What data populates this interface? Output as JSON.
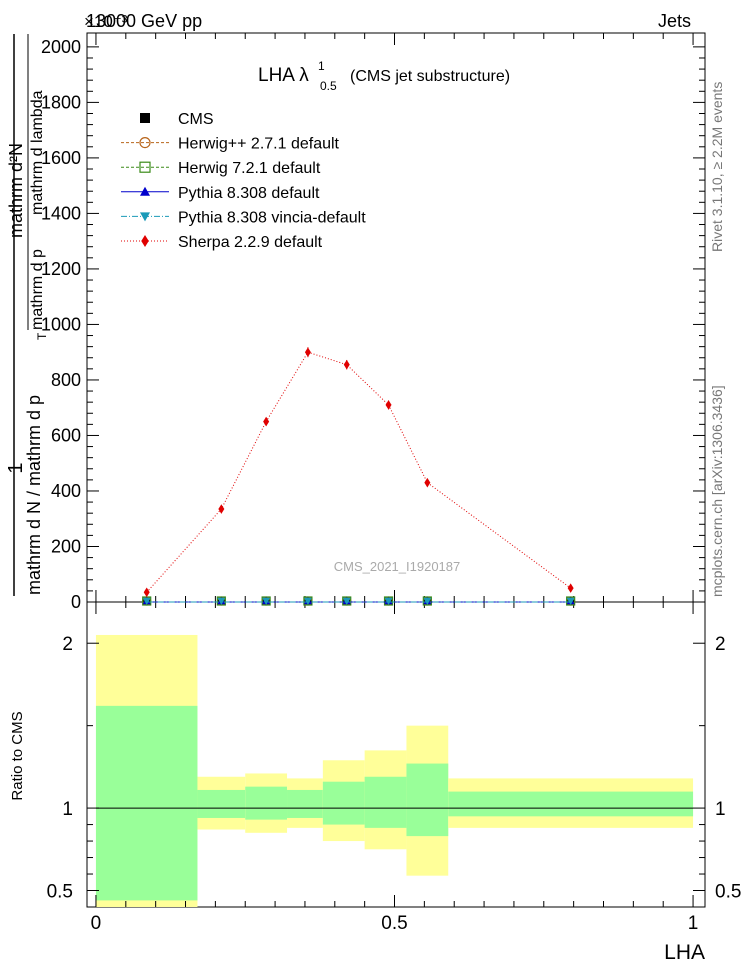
{
  "header": {
    "left": "13000 GeV pp",
    "right": "Jets",
    "multiplier": "×10⁻³"
  },
  "side_texts": {
    "rivet": "Rivet 3.1.10, ≥ 2.2M events",
    "mcplots": "mcplots.cern.ch [arXiv:1306.3436]"
  },
  "chart_data": [
    {
      "type": "line",
      "title_main": "LHA λ",
      "title_sup": "1",
      "title_sub": "0.5",
      "title_rest": "(CMS jet substructure)",
      "watermark": "CMS_2021_I1920187",
      "ylabel_numer": "1",
      "ylabel_denom_a": "mathrm d N / mathrm d p",
      "ylabel_denom_b": "mathrm d p",
      "ylabel_sub": "T",
      "ylabel_frac_numer": "mathrm d²N",
      "ylabel_frac_denom": "mathrm d p",
      "ylabel_frac_denom_b": "mathrm d lambda",
      "ylim": [
        0,
        2050
      ],
      "y_ticks": [
        0,
        200,
        400,
        600,
        800,
        1000,
        1200,
        1400,
        1600,
        1800,
        2000
      ],
      "y_tick_labels": [
        "0",
        "200",
        "400",
        "600",
        "800",
        "1000",
        "1200",
        "1400",
        "1600",
        "1800",
        "2000"
      ],
      "xlim": [
        -0.015,
        1.02
      ],
      "legend_placement": "top-left",
      "series": [
        {
          "name": "CMS",
          "color": "#000000",
          "marker": "square",
          "x": [
            0.085,
            0.21,
            0.285,
            0.355,
            0.42,
            0.49,
            0.555,
            0.795
          ],
          "y": [
            0,
            0,
            0,
            0,
            0,
            0,
            0,
            0
          ]
        },
        {
          "name": "Herwig++ 2.7.1 default",
          "color": "#b8651b",
          "marker": "circle-open",
          "dash": "3,2",
          "x": [
            0.085,
            0.21,
            0.285,
            0.355,
            0.42,
            0.49,
            0.555,
            0.795
          ],
          "y": [
            0,
            0,
            0,
            0,
            0,
            0,
            0,
            0
          ]
        },
        {
          "name": "Herwig 7.2.1 default",
          "color": "#3a8a18",
          "marker": "square-open",
          "dash": "3,2",
          "x": [
            0.085,
            0.21,
            0.285,
            0.355,
            0.42,
            0.49,
            0.555,
            0.795
          ],
          "y": [
            0,
            0,
            0,
            0,
            0,
            0,
            0,
            0
          ]
        },
        {
          "name": "Pythia 8.308 default",
          "color": "#0000cc",
          "marker": "triangle-up",
          "dash": "",
          "x": [
            0.085,
            0.21,
            0.285,
            0.355,
            0.42,
            0.49,
            0.555,
            0.795
          ],
          "y": [
            0,
            0,
            0,
            0,
            0,
            0,
            0,
            0
          ]
        },
        {
          "name": "Pythia 8.308 vincia-default",
          "color": "#1a9ab8",
          "marker": "triangle-down",
          "dash": "6,2,1,2",
          "x": [
            0.085,
            0.21,
            0.285,
            0.355,
            0.42,
            0.49,
            0.555,
            0.795
          ],
          "y": [
            0,
            0,
            0,
            0,
            0,
            0,
            0,
            0
          ]
        },
        {
          "name": "Sherpa 2.2.9 default",
          "color": "#e00000",
          "marker": "diamond",
          "dash": "1,2",
          "x": [
            0.085,
            0.21,
            0.285,
            0.355,
            0.42,
            0.49,
            0.555,
            0.795
          ],
          "y": [
            35,
            335,
            650,
            900,
            855,
            710,
            430,
            50
          ],
          "yerr": [
            8,
            12,
            15,
            18,
            17,
            16,
            12,
            9
          ]
        }
      ]
    },
    {
      "type": "area",
      "ylabel": "Ratio to CMS",
      "xlabel": "LHA",
      "ylim": [
        0.4,
        2.25
      ],
      "y_ticks": [
        0.5,
        1,
        2
      ],
      "y_tick_labels": [
        "0.5",
        "1",
        "2"
      ],
      "xlim": [
        -0.015,
        1.02
      ],
      "x_ticks": [
        0,
        0.5,
        1
      ],
      "x_tick_labels": [
        "0",
        "0.5",
        "1"
      ],
      "bins": [
        {
          "lo": 0.0,
          "hi": 0.17,
          "stat_lo": 0.44,
          "stat_hi": 1.62,
          "tot_lo": 0.3,
          "tot_hi": 2.05
        },
        {
          "lo": 0.17,
          "hi": 0.25,
          "stat_lo": 0.94,
          "stat_hi": 1.11,
          "tot_lo": 0.87,
          "tot_hi": 1.19
        },
        {
          "lo": 0.25,
          "hi": 0.32,
          "stat_lo": 0.93,
          "stat_hi": 1.13,
          "tot_lo": 0.85,
          "tot_hi": 1.21
        },
        {
          "lo": 0.32,
          "hi": 0.38,
          "stat_lo": 0.94,
          "stat_hi": 1.11,
          "tot_lo": 0.88,
          "tot_hi": 1.18
        },
        {
          "lo": 0.38,
          "hi": 0.45,
          "stat_lo": 0.9,
          "stat_hi": 1.16,
          "tot_lo": 0.8,
          "tot_hi": 1.29
        },
        {
          "lo": 0.45,
          "hi": 0.52,
          "stat_lo": 0.88,
          "stat_hi": 1.19,
          "tot_lo": 0.75,
          "tot_hi": 1.35
        },
        {
          "lo": 0.52,
          "hi": 0.59,
          "stat_lo": 0.83,
          "stat_hi": 1.27,
          "tot_lo": 0.59,
          "tot_hi": 1.5
        },
        {
          "lo": 0.59,
          "hi": 1.0,
          "stat_lo": 0.95,
          "stat_hi": 1.1,
          "tot_lo": 0.88,
          "tot_hi": 1.18
        }
      ],
      "reference": 1,
      "colors": {
        "stat": "#99ff99",
        "total": "#ffff99"
      }
    }
  ]
}
